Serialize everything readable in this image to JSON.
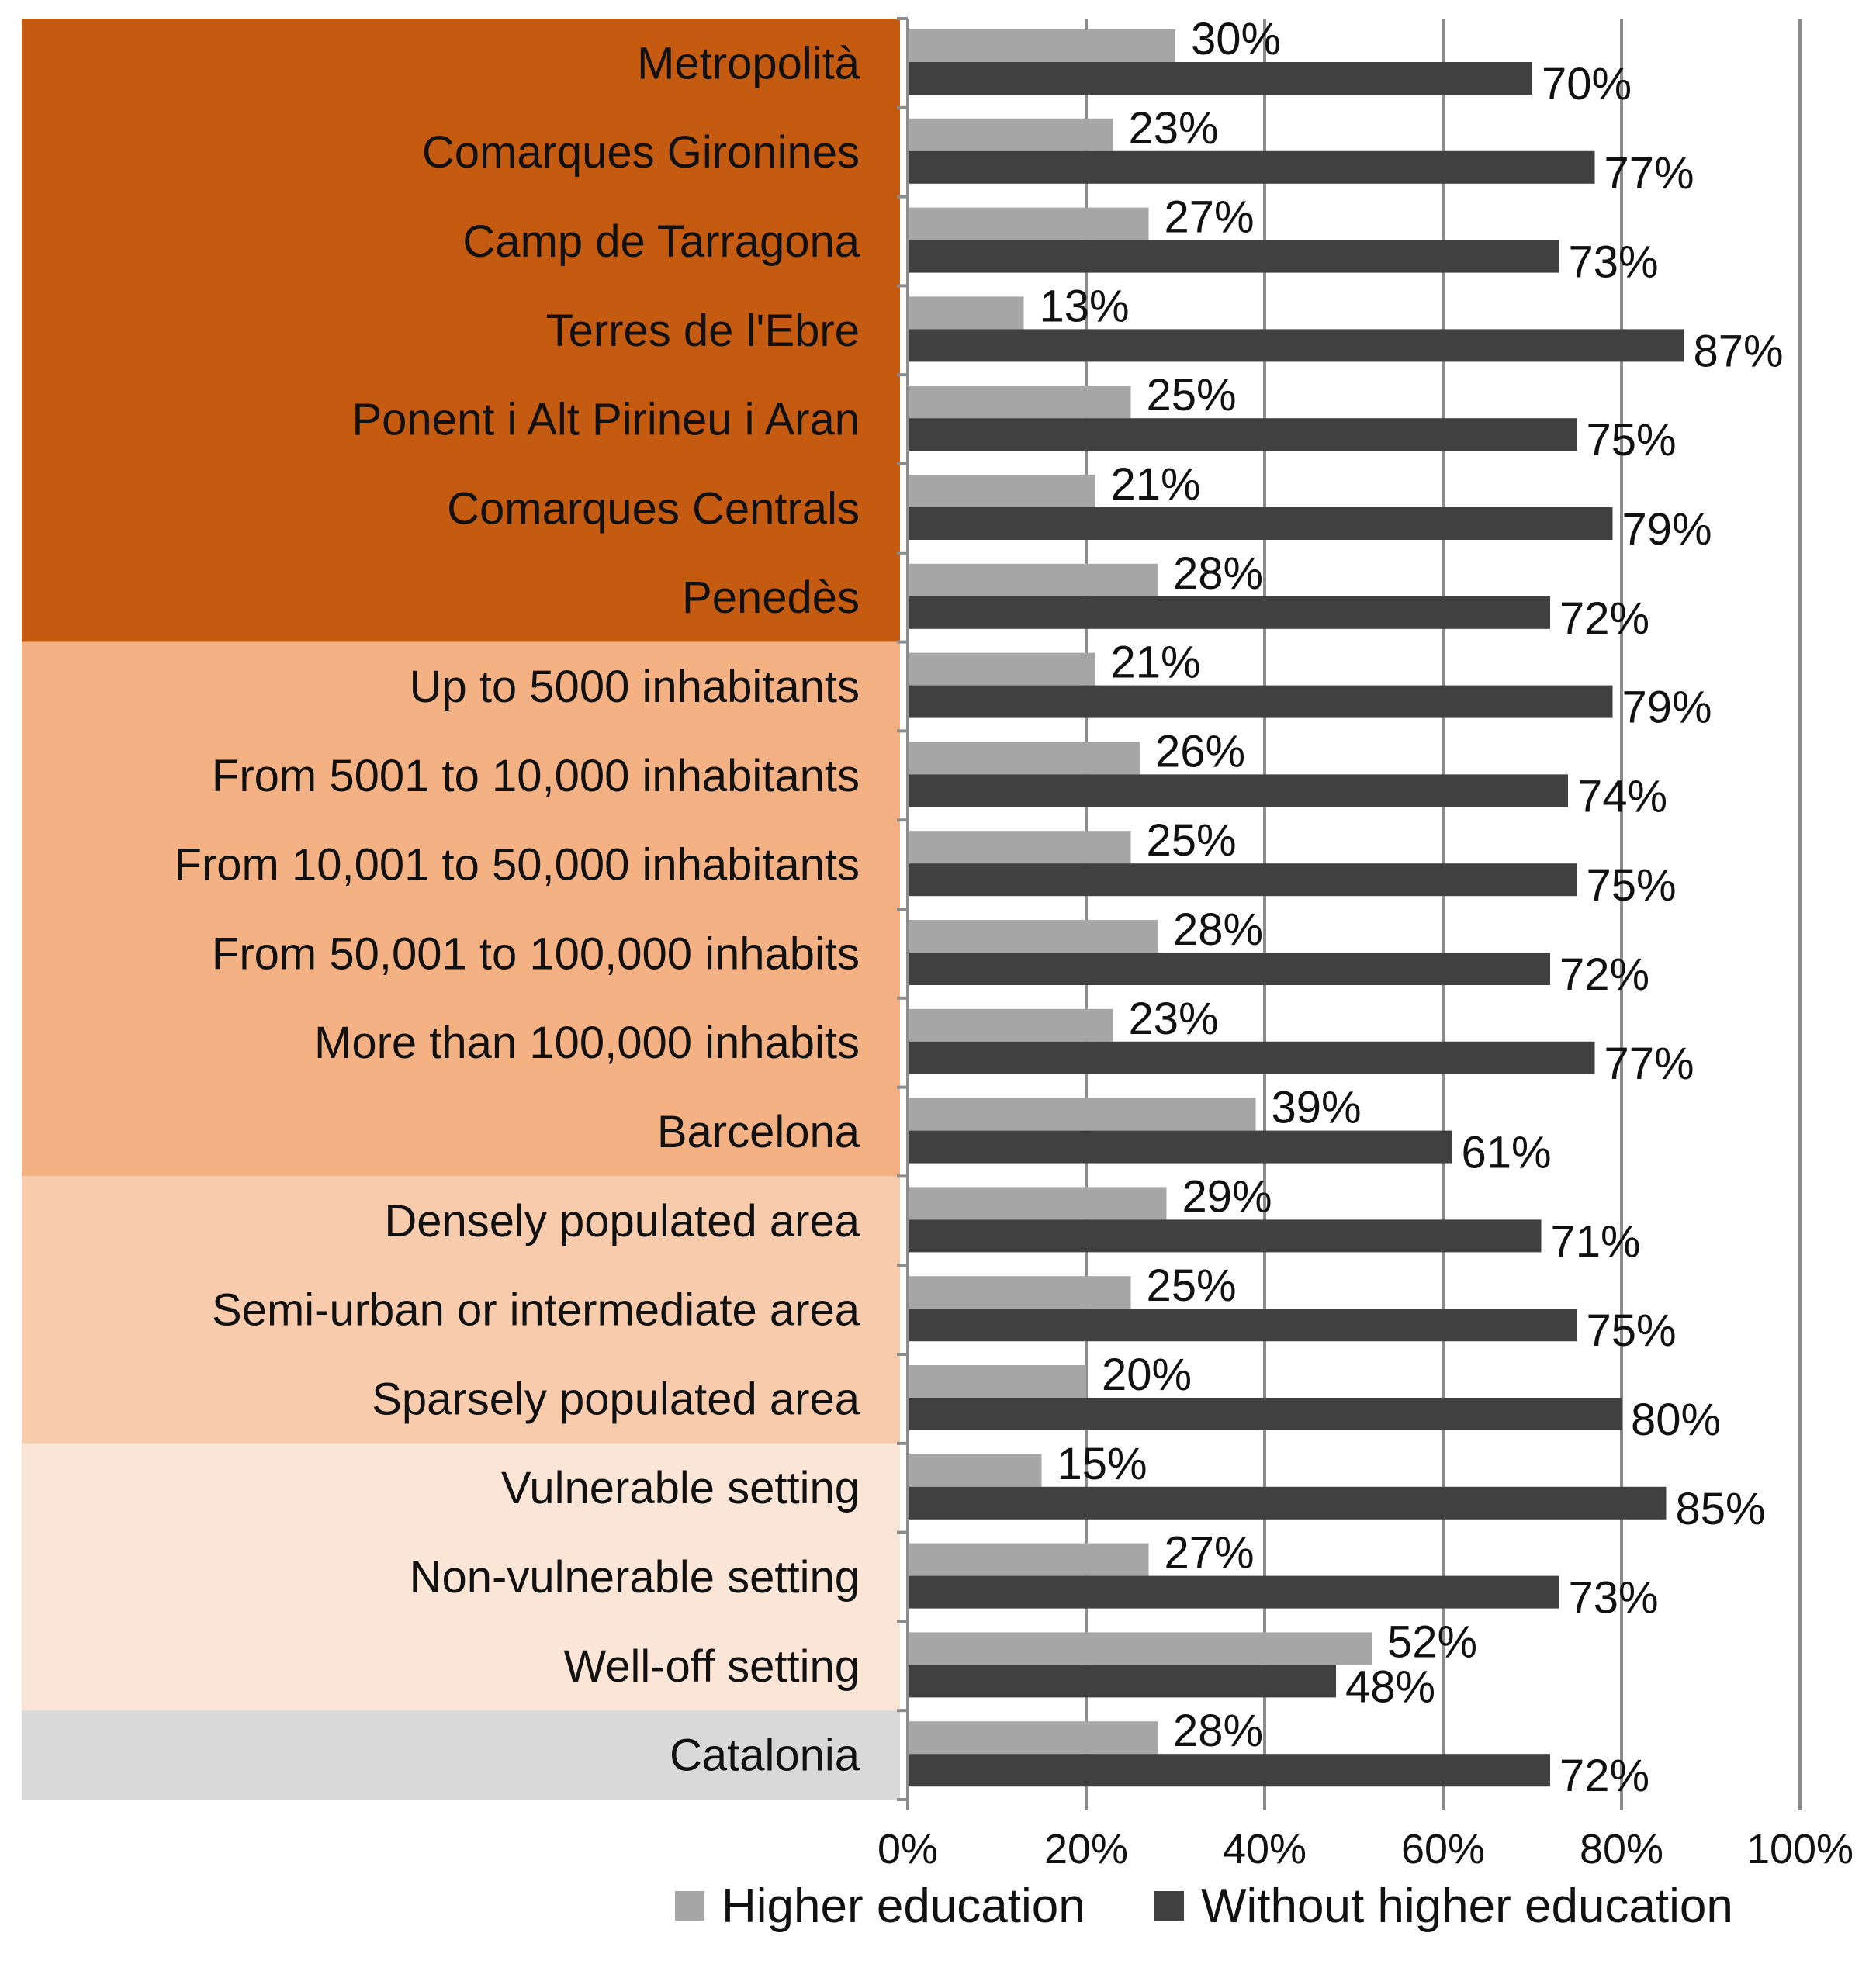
{
  "chart_data": {
    "type": "bar",
    "orientation": "horizontal",
    "title": "",
    "xlabel": "",
    "ylabel": "",
    "xlim": [
      0,
      100
    ],
    "x_ticks": [
      "0%",
      "20%",
      "40%",
      "60%",
      "80%",
      "100%"
    ],
    "grid": true,
    "legend_position": "bottom",
    "categories": [
      "Metropolità",
      "Comarques Gironines",
      "Camp de Tarragona",
      "Terres de l'Ebre",
      "Ponent i Alt Pirineu i Aran",
      "Comarques Centrals",
      "Penedès",
      "Up to 5000 inhabitants",
      "From 5001 to 10,000 inhabitants",
      "From 10,001 to 50,000 inhabitants",
      "From 50,001 to 100,000 inhabits",
      "More than 100,000 inhabits",
      "Barcelona",
      "Densely populated area",
      "Semi-urban or intermediate area",
      "Sparsely populated area",
      "Vulnerable setting",
      "Non-vulnerable setting",
      "Well-off setting",
      "Catalonia"
    ],
    "series": [
      {
        "name": "Higher education",
        "color": "#a6a6a6",
        "values": [
          30,
          23,
          27,
          13,
          25,
          21,
          28,
          21,
          26,
          25,
          28,
          23,
          39,
          29,
          25,
          20,
          15,
          27,
          52,
          28
        ],
        "labels": [
          "30%",
          "23%",
          "27%",
          "13%",
          "25%",
          "21%",
          "28%",
          "21%",
          "26%",
          "25%",
          "28%",
          "23%",
          "39%",
          "29%",
          "25%",
          "20%",
          "15%",
          "27%",
          "52%",
          "28%"
        ]
      },
      {
        "name": "Without higher education",
        "color": "#404040",
        "values": [
          70,
          77,
          73,
          87,
          75,
          79,
          72,
          79,
          74,
          75,
          72,
          77,
          61,
          71,
          75,
          80,
          85,
          73,
          48,
          72
        ],
        "labels": [
          "70%",
          "77%",
          "73%",
          "87%",
          "75%",
          "79%",
          "72%",
          "79%",
          "74%",
          "75%",
          "72%",
          "77%",
          "61%",
          "71%",
          "75%",
          "80%",
          "85%",
          "73%",
          "48%",
          "72%"
        ]
      }
    ],
    "category_groups": [
      {
        "start": 0,
        "end": 6,
        "color": "#c55a11"
      },
      {
        "start": 7,
        "end": 12,
        "color": "#f4b183"
      },
      {
        "start": 13,
        "end": 15,
        "color": "#f8cbad"
      },
      {
        "start": 16,
        "end": 18,
        "color": "#fbe5d6"
      },
      {
        "start": 19,
        "end": 19,
        "color": "#d9d9d9"
      }
    ]
  }
}
